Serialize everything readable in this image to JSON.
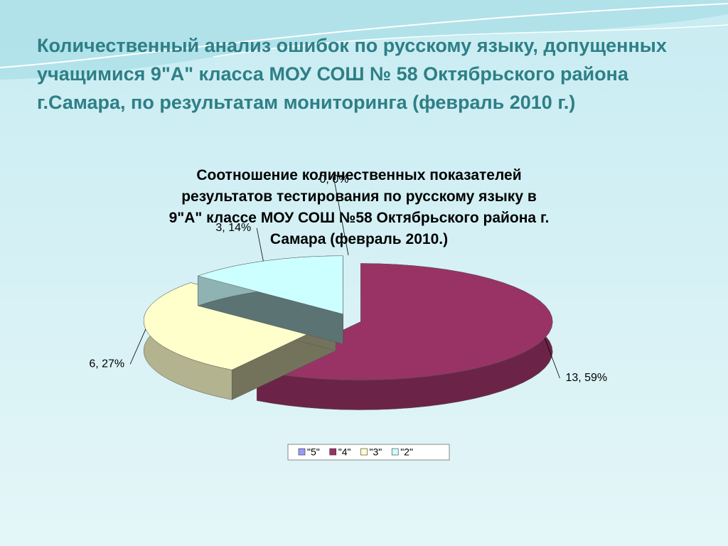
{
  "slide_title": "Количественный анализ ошибок по русскому языку, допущенных учащимися 9\"А\" класса МОУ  СОШ № 58 Октябрьского района г.Самара, по результатам  мониторинга (февраль 2010 г.)",
  "chart_data": {
    "type": "pie",
    "title": "Соотношение количественных показателей результатов тестирования по русскому языку в 9\"А\" классе МОУ СОШ №58 Октябрьского района г. Самара (февраль 2010.)",
    "categories": [
      "\"5\"",
      "\"4\"",
      "\"3\"",
      "\"2\""
    ],
    "values": [
      0,
      13,
      6,
      3
    ],
    "value_labels": [
      "0, 0%",
      "13, 59%",
      "6, 27%",
      "3, 14%"
    ],
    "colors": [
      "#9999ff",
      "#993366",
      "#ffffcc",
      "#ccffff"
    ],
    "legend": "bottom"
  }
}
